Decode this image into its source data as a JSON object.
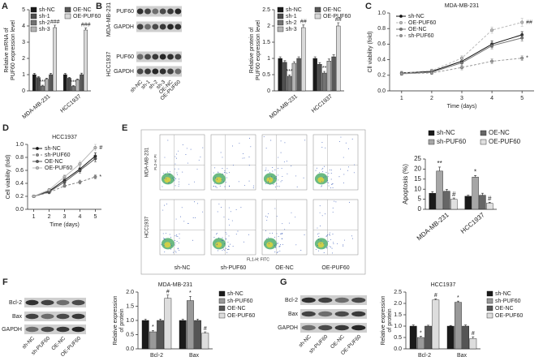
{
  "chart_data": [
    {
      "panel": "A",
      "type": "bar",
      "y_label": [
        "Relative mRNA of",
        "PUF60 expression level"
      ],
      "categories": [
        "MDA-MB-231",
        "HCC1937"
      ],
      "ylim": [
        0,
        5
      ],
      "yticks": [
        0,
        1,
        2,
        3,
        4,
        5
      ],
      "series": [
        {
          "name": "sh-NC",
          "color": "#1a1a1a",
          "values": [
            1.0,
            1.0
          ],
          "errors": [
            0.08,
            0.07
          ]
        },
        {
          "name": "sh-1",
          "color": "#4d4d4d",
          "values": [
            0.82,
            0.78
          ],
          "errors": [
            0.05,
            0.05
          ]
        },
        {
          "name": "sh-2",
          "color": "#737373",
          "values": [
            0.3,
            0.28
          ],
          "errors": [
            0.05,
            0.04
          ],
          "annotations": [
            "***",
            "***"
          ]
        },
        {
          "name": "sh-3",
          "color": "#b3b3b3",
          "values": [
            0.72,
            0.68
          ],
          "errors": [
            0.06,
            0.05
          ]
        },
        {
          "name": "OE-NC",
          "color": "#595959",
          "values": [
            1.0,
            1.0
          ],
          "errors": [
            0.08,
            0.09
          ]
        },
        {
          "name": "OE-PUF60",
          "color": "#d9d9d9",
          "values": [
            3.9,
            3.75
          ],
          "errors": [
            0.15,
            0.12
          ],
          "annotations": [
            "###",
            "###"
          ]
        }
      ]
    },
    {
      "panel": "B",
      "type": "bar",
      "y_label": [
        "Relative protein of",
        "PUF60 expression level"
      ],
      "categories": [
        "MDA-MB-231",
        "HCC1937"
      ],
      "ylim": [
        0,
        2.5
      ],
      "yticks": [
        0,
        0.5,
        1,
        1.5,
        2,
        2.5
      ],
      "series": [
        {
          "name": "sh-NC",
          "color": "#1a1a1a",
          "values": [
            1.0,
            1.0
          ],
          "errors": [
            0.05,
            0.05
          ]
        },
        {
          "name": "sh-1",
          "color": "#4d4d4d",
          "values": [
            0.88,
            0.82
          ],
          "errors": [
            0.05,
            0.05
          ]
        },
        {
          "name": "sh-2",
          "color": "#737373",
          "values": [
            0.45,
            0.55
          ],
          "errors": [
            0.04,
            0.05
          ],
          "annotations": [
            "***",
            "**"
          ]
        },
        {
          "name": "sh-3",
          "color": "#b3b3b3",
          "values": [
            0.85,
            0.92
          ],
          "errors": [
            0.05,
            0.06
          ]
        },
        {
          "name": "OE-NC",
          "color": "#595959",
          "values": [
            1.0,
            1.05
          ],
          "errors": [
            0.05,
            0.06
          ]
        },
        {
          "name": "OE-PUF60",
          "color": "#d9d9d9",
          "values": [
            1.95,
            2.0
          ],
          "errors": [
            0.08,
            0.1
          ],
          "annotations": [
            "##",
            "##"
          ]
        }
      ]
    },
    {
      "panel": "C",
      "type": "line",
      "title": "MDA-MB-231",
      "x_label": "Time (days)",
      "y_label": "Cll viability (fold)",
      "x": [
        1,
        2,
        3,
        4,
        5
      ],
      "xlim": [
        0.6,
        5.4
      ],
      "xticks": [
        1,
        2,
        3,
        4,
        5
      ],
      "ylim": [
        0,
        1
      ],
      "yticks": [
        {
          "value": 0,
          "label": "0.0"
        },
        0.2,
        0.4,
        0.6,
        0.8,
        {
          "value": 1,
          "label": "1.0"
        }
      ],
      "series": [
        {
          "name": "sh-NC",
          "color": "#111111",
          "dash": false,
          "values": [
            0.23,
            0.25,
            0.38,
            0.6,
            0.72
          ],
          "errors": [
            0.02,
            0.02,
            0.03,
            0.04,
            0.04
          ]
        },
        {
          "name": "OE-PUF60",
          "color": "#bbbbbb",
          "dash": true,
          "values": [
            0.23,
            0.26,
            0.42,
            0.78,
            0.88
          ],
          "errors": [
            0.02,
            0.02,
            0.03,
            0.04,
            0.05
          ],
          "annotations": [
            null,
            null,
            null,
            null,
            "##"
          ]
        },
        {
          "name": "OE-NC",
          "color": "#777777",
          "dash": false,
          "values": [
            0.22,
            0.24,
            0.36,
            0.58,
            0.68
          ],
          "errors": [
            0.02,
            0.02,
            0.03,
            0.04,
            0.04
          ]
        },
        {
          "name": "sh-PUF60",
          "color": "#999999",
          "dash": true,
          "values": [
            0.22,
            0.23,
            0.3,
            0.38,
            0.42
          ],
          "errors": [
            0.02,
            0.02,
            0.03,
            0.03,
            0.03
          ],
          "annotations": [
            null,
            null,
            null,
            null,
            "*"
          ]
        }
      ]
    },
    {
      "panel": "D",
      "type": "line",
      "title": "HCC1937",
      "x_label": "Time (days)",
      "y_label": "Cell viability (fold)",
      "x": [
        1,
        2,
        3,
        4,
        5
      ],
      "xlim": [
        0.6,
        5.4
      ],
      "xticks": [
        1,
        2,
        3,
        4,
        5
      ],
      "ylim": [
        0,
        1
      ],
      "yticks": [
        {
          "value": 0,
          "label": "0.0"
        },
        0.2,
        0.4,
        0.6,
        0.8,
        {
          "value": 1,
          "label": "1.0"
        }
      ],
      "series": [
        {
          "name": "sh-NC",
          "color": "#111111",
          "dash": false,
          "values": [
            0.2,
            0.28,
            0.45,
            0.62,
            0.82
          ],
          "errors": [
            0.02,
            0.02,
            0.03,
            0.04,
            0.05
          ]
        },
        {
          "name": "sh-PUF60",
          "color": "#888888",
          "dash": true,
          "values": [
            0.2,
            0.26,
            0.36,
            0.42,
            0.5
          ],
          "errors": [
            0.02,
            0.02,
            0.02,
            0.03,
            0.03
          ],
          "annotations": [
            null,
            null,
            null,
            null,
            "*"
          ]
        },
        {
          "name": "OE-NC",
          "color": "#555555",
          "dash": false,
          "values": [
            0.2,
            0.27,
            0.42,
            0.6,
            0.78
          ],
          "errors": [
            0.02,
            0.02,
            0.03,
            0.04,
            0.05
          ]
        },
        {
          "name": "OE-PUF60",
          "color": "#bbbbbb",
          "dash": false,
          "values": [
            0.2,
            0.3,
            0.5,
            0.7,
            0.95
          ],
          "errors": [
            0.02,
            0.02,
            0.03,
            0.04,
            0.05
          ],
          "annotations": [
            null,
            null,
            null,
            null,
            "#"
          ]
        }
      ]
    },
    {
      "panel": "E",
      "type": "bar",
      "y_label": "Apoptosis (%)",
      "categories": [
        "MDA-MB-231",
        "HCC1937"
      ],
      "ylim": [
        0,
        25
      ],
      "yticks": [
        0,
        5,
        10,
        15,
        20,
        25
      ],
      "series": [
        {
          "name": "sh-NC",
          "color": "#1a1a1a",
          "values": [
            8,
            6.5
          ],
          "errors": [
            0.8,
            0.5
          ]
        },
        {
          "name": "sh-PUF60",
          "color": "#a6a6a6",
          "values": [
            19,
            16
          ],
          "errors": [
            2,
            0.8
          ],
          "annotations": [
            "**",
            "*"
          ]
        },
        {
          "name": "OE-NC",
          "color": "#666666",
          "values": [
            9,
            7
          ],
          "errors": [
            0.9,
            1
          ]
        },
        {
          "name": "OE-PUF60",
          "color": "#e0e0e0",
          "values": [
            5,
            3
          ],
          "errors": [
            0.6,
            0.5
          ],
          "annotations": [
            "#",
            "#"
          ]
        }
      ]
    },
    {
      "panel": "F",
      "type": "bar",
      "title": "MDA-MB-231",
      "y_label": [
        "Relative expression",
        "of protein"
      ],
      "categories": [
        "Bcl-2",
        "Bax"
      ],
      "ylim": [
        0,
        2
      ],
      "yticks": [
        {
          "value": 0,
          "label": "0.0"
        },
        0.5,
        {
          "value": 1,
          "label": "1.0"
        },
        1.5,
        {
          "value": 2,
          "label": "2.0"
        }
      ],
      "series": [
        {
          "name": "sh-NC",
          "color": "#1a1a1a",
          "values": [
            1.0,
            1.0
          ],
          "errors": [
            0.05,
            0.05
          ]
        },
        {
          "name": "sh-PUF60",
          "color": "#999999",
          "values": [
            0.6,
            1.7
          ],
          "errors": [
            0.05,
            0.15
          ],
          "annotations": [
            "*",
            "*"
          ]
        },
        {
          "name": "OE-NC",
          "color": "#555555",
          "values": [
            1.0,
            1.0
          ],
          "errors": [
            0.05,
            0.05
          ]
        },
        {
          "name": "OE-PUF60",
          "color": "#dddddd",
          "values": [
            1.78,
            0.55
          ],
          "errors": [
            0.12,
            0.05
          ],
          "annotations": [
            "#",
            "#"
          ]
        }
      ]
    },
    {
      "panel": "G",
      "type": "bar",
      "title": "HCC1937",
      "y_label": [
        "Relative expression",
        "of protein"
      ],
      "categories": [
        "Bcl-2",
        "Bax"
      ],
      "ylim": [
        0,
        2.5
      ],
      "yticks": [
        {
          "value": 0,
          "label": "0.0"
        },
        0.5,
        {
          "value": 1,
          "label": "1.0"
        },
        1.5,
        {
          "value": 2,
          "label": "2.0"
        },
        2.5
      ],
      "series": [
        {
          "name": "sh-NC",
          "color": "#1a1a1a",
          "values": [
            1.0,
            1.0
          ],
          "errors": [
            0.05,
            0.03
          ]
        },
        {
          "name": "sh-PUF60",
          "color": "#999999",
          "values": [
            0.5,
            2.05
          ],
          "errors": [
            0.05,
            0.05
          ],
          "annotations": [
            "*",
            "*"
          ]
        },
        {
          "name": "OE-NC",
          "color": "#555555",
          "values": [
            1.0,
            1.0
          ],
          "errors": [
            0.04,
            0.05
          ]
        },
        {
          "name": "OE-PUF60",
          "color": "#dddddd",
          "values": [
            2.15,
            0.45
          ],
          "errors": [
            0.05,
            0.08
          ],
          "annotations": [
            "#",
            "#"
          ]
        }
      ]
    }
  ],
  "blots": [
    {
      "rows": [
        "PUF60",
        "GAPDH",
        "PUF60",
        "GAPDH"
      ],
      "groups": [
        "MDA-MB-231",
        "HCC1937"
      ],
      "lanes": [
        "sh-NC",
        "sh-1",
        "sh-2",
        "sh-3",
        "OE-NC",
        "OE-PUF60"
      ]
    },
    {
      "rows": [
        "Bcl-2",
        "Bax",
        "GAPDH"
      ],
      "lanes": [
        "sh-NC",
        "sh-PUF60",
        "OE-NC",
        "OE-PUF60"
      ]
    },
    {
      "rows": [
        "Bcl-2",
        "Bax",
        "GAPDH"
      ],
      "lanes": [
        "sh-NC",
        "sh-PUF60",
        "OE-NC",
        "OE-PUF60"
      ]
    }
  ],
  "flow": {
    "rows": [
      "MDA-MB-231",
      "HCC1937"
    ],
    "columns": [
      "sh-NC",
      "sh-PUF60",
      "OE-NC",
      "OE-PUF60"
    ],
    "y_label": "FL2-H: PI",
    "x_label": "FL1-H: FITC"
  }
}
